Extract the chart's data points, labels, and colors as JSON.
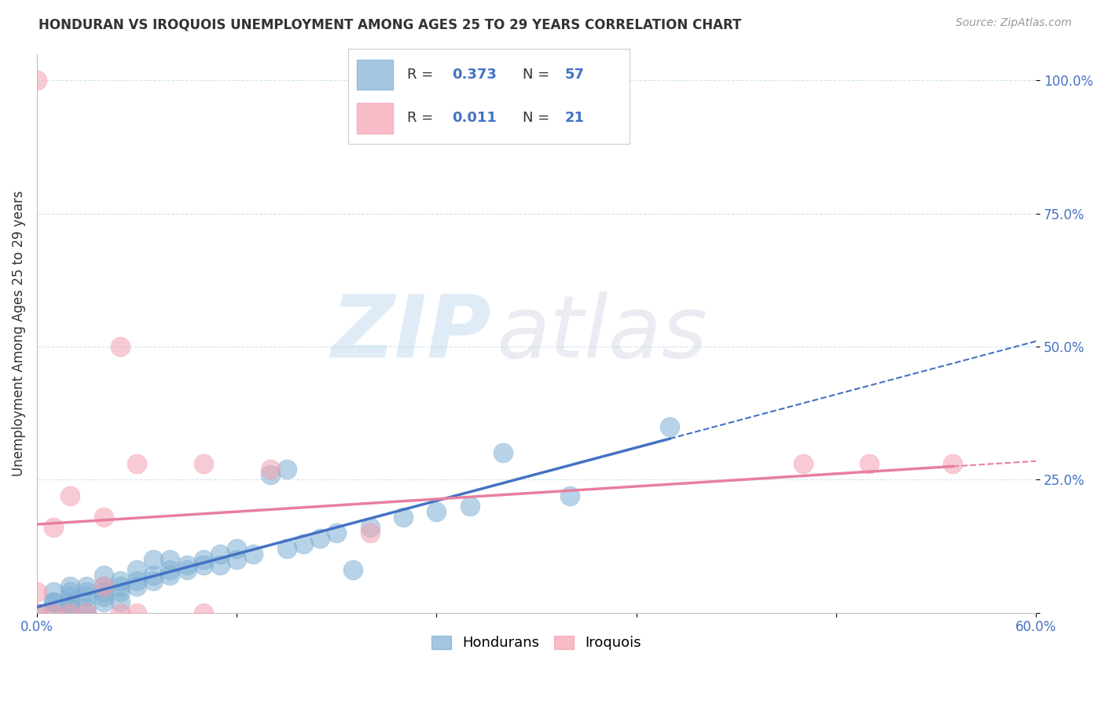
{
  "title": "HONDURAN VS IROQUOIS UNEMPLOYMENT AMONG AGES 25 TO 29 YEARS CORRELATION CHART",
  "source": "Source: ZipAtlas.com",
  "ylabel": "Unemployment Among Ages 25 to 29 years",
  "xlim": [
    0.0,
    0.6
  ],
  "ylim": [
    0.0,
    1.05
  ],
  "ytick_vals": [
    0.0,
    0.25,
    0.5,
    0.75,
    1.0
  ],
  "ytick_labels": [
    "",
    "25.0%",
    "50.0%",
    "75.0%",
    "100.0%"
  ],
  "xtick_vals": [
    0.0,
    0.12,
    0.24,
    0.36,
    0.48,
    0.6
  ],
  "xtick_labels": [
    "0.0%",
    "",
    "",
    "",
    "",
    "60.0%"
  ],
  "honduran_color": "#7fafd4",
  "iroquois_color": "#f4a0b0",
  "honduran_line_color": "#4472c4",
  "iroquois_line_color": "#e87fa0",
  "honduran_R": 0.373,
  "honduran_N": 57,
  "iroquois_R": 0.011,
  "iroquois_N": 21,
  "legend_label_honduran": "Hondurans",
  "legend_label_iroquois": "Iroquois",
  "background_color": "#ffffff",
  "watermark_zip": "ZIP",
  "watermark_atlas": "atlas",
  "grid_color": "#d0e4f0",
  "honduran_x": [
    0.0,
    0.01,
    0.01,
    0.01,
    0.01,
    0.02,
    0.02,
    0.02,
    0.02,
    0.02,
    0.02,
    0.03,
    0.03,
    0.03,
    0.03,
    0.03,
    0.04,
    0.04,
    0.04,
    0.04,
    0.04,
    0.05,
    0.05,
    0.05,
    0.05,
    0.06,
    0.06,
    0.06,
    0.07,
    0.07,
    0.07,
    0.08,
    0.08,
    0.08,
    0.09,
    0.09,
    0.1,
    0.1,
    0.11,
    0.11,
    0.12,
    0.12,
    0.13,
    0.14,
    0.15,
    0.15,
    0.16,
    0.17,
    0.18,
    0.19,
    0.2,
    0.22,
    0.24,
    0.26,
    0.28,
    0.32,
    0.38
  ],
  "honduran_y": [
    0.0,
    0.0,
    0.02,
    0.02,
    0.04,
    0.0,
    0.01,
    0.02,
    0.03,
    0.04,
    0.05,
    0.0,
    0.01,
    0.03,
    0.04,
    0.05,
    0.02,
    0.03,
    0.04,
    0.05,
    0.07,
    0.02,
    0.04,
    0.05,
    0.06,
    0.05,
    0.06,
    0.08,
    0.06,
    0.07,
    0.1,
    0.07,
    0.08,
    0.1,
    0.08,
    0.09,
    0.09,
    0.1,
    0.09,
    0.11,
    0.1,
    0.12,
    0.11,
    0.26,
    0.27,
    0.12,
    0.13,
    0.14,
    0.15,
    0.08,
    0.16,
    0.18,
    0.19,
    0.2,
    0.3,
    0.22,
    0.35
  ],
  "iroquois_x": [
    0.0,
    0.0,
    0.0,
    0.01,
    0.01,
    0.02,
    0.02,
    0.03,
    0.04,
    0.04,
    0.05,
    0.05,
    0.06,
    0.06,
    0.1,
    0.1,
    0.14,
    0.2,
    0.46,
    0.5,
    0.55
  ],
  "iroquois_y": [
    0.0,
    0.04,
    1.0,
    0.0,
    0.16,
    0.0,
    0.22,
    0.0,
    0.05,
    0.18,
    0.0,
    0.5,
    0.0,
    0.28,
    0.28,
    0.0,
    0.27,
    0.15,
    0.28,
    0.28,
    0.28
  ]
}
